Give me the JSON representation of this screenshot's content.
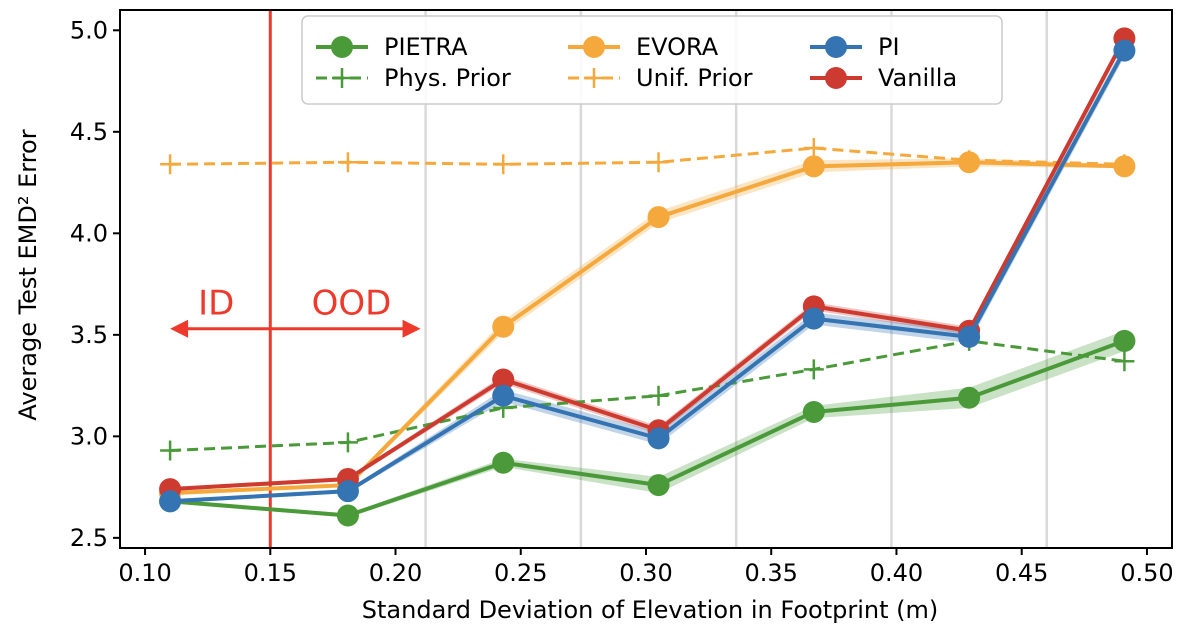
{
  "chart_data": {
    "type": "line",
    "title": "",
    "xlabel": "Standard Deviation of Elevation in Footprint (m)",
    "ylabel": "Average Test EMD² Error",
    "xlim": [
      0.09,
      0.51
    ],
    "ylim": [
      2.45,
      5.1
    ],
    "xticks": [
      0.1,
      0.15,
      0.2,
      0.25,
      0.3,
      0.35,
      0.4,
      0.45,
      0.5
    ],
    "xtick_labels": [
      "0.10",
      "0.15",
      "0.20",
      "0.25",
      "0.30",
      "0.35",
      "0.40",
      "0.45",
      "0.50"
    ],
    "yticks": [
      2.5,
      3.0,
      3.5,
      4.0,
      4.5,
      5.0
    ],
    "ytick_labels": [
      "2.5",
      "3.0",
      "3.5",
      "4.0",
      "4.5",
      "5.0"
    ],
    "bin_edges": [
      0.212,
      0.274,
      0.336,
      0.398,
      0.46
    ],
    "ood_boundary": 0.15,
    "x": [
      0.11,
      0.181,
      0.243,
      0.305,
      0.367,
      0.429,
      0.491
    ],
    "series": [
      {
        "name": "PIETRA",
        "style": "solid-marker",
        "color": "#4b9a3a",
        "values": [
          2.68,
          2.61,
          2.87,
          2.76,
          3.12,
          3.19,
          3.47
        ],
        "band": [
          0.01,
          0.01,
          0.02,
          0.04,
          0.03,
          0.05,
          0.05
        ]
      },
      {
        "name": "Phys. Prior",
        "style": "dashed-plus",
        "color": "#4b9a3a",
        "values": [
          2.93,
          2.97,
          3.14,
          3.2,
          3.33,
          3.47,
          3.37
        ]
      },
      {
        "name": "EVORA",
        "style": "solid-marker",
        "color": "#f5a93c",
        "values": [
          2.72,
          2.76,
          3.54,
          4.08,
          4.33,
          4.35,
          4.33
        ],
        "band": [
          0.01,
          0.01,
          0.03,
          0.03,
          0.03,
          0.02,
          0.01
        ]
      },
      {
        "name": "Unif. Prior",
        "style": "dashed-plus",
        "color": "#f5a93c",
        "values": [
          4.34,
          4.35,
          4.34,
          4.35,
          4.42,
          4.36,
          4.34
        ]
      },
      {
        "name": "PI",
        "style": "solid-marker",
        "color": "#3574b3",
        "values": [
          2.68,
          2.73,
          3.2,
          2.99,
          3.58,
          3.49,
          4.9
        ],
        "band": [
          0.01,
          0.01,
          0.03,
          0.03,
          0.03,
          0.03,
          0.03
        ]
      },
      {
        "name": "Vanilla",
        "style": "solid-marker",
        "color": "#cc3a30",
        "values": [
          2.74,
          2.79,
          3.28,
          3.03,
          3.64,
          3.52,
          4.96
        ],
        "band": [
          0.01,
          0.01,
          0.02,
          0.02,
          0.02,
          0.02,
          0.02
        ]
      }
    ],
    "draw_order": [
      "Phys. Prior",
      "Unif. Prior",
      "PIETRA",
      "EVORA",
      "Vanilla",
      "PI"
    ],
    "legend": {
      "position": "top-center",
      "columns": 3,
      "entries": [
        "PIETRA",
        "Phys. Prior",
        "EVORA",
        "Unif. Prior",
        "PI",
        "Vanilla"
      ]
    },
    "annotations": {
      "id_label": "ID",
      "ood_label": "OOD",
      "color": "#ee3a2c",
      "arrow_x_range": [
        0.11,
        0.21
      ],
      "arrow_y": 3.53,
      "label_y": 3.66
    }
  }
}
